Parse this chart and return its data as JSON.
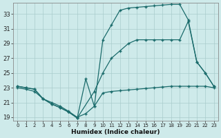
{
  "xlabel": "Humidex (Indice chaleur)",
  "bg_color": "#ceeaea",
  "grid_color": "#aacccc",
  "line_color": "#1a6b6b",
  "xlim": [
    -0.5,
    23.5
  ],
  "ylim": [
    18.5,
    34.5
  ],
  "xticks": [
    0,
    1,
    2,
    3,
    4,
    5,
    6,
    7,
    8,
    9,
    10,
    11,
    12,
    13,
    14,
    15,
    16,
    17,
    18,
    19,
    20,
    21,
    22,
    23
  ],
  "yticks": [
    19,
    21,
    23,
    25,
    27,
    29,
    31,
    33
  ],
  "series_a_x": [
    0,
    1,
    2,
    3,
    4,
    5,
    6,
    7,
    8,
    9,
    10,
    11,
    12,
    13,
    14,
    15,
    16,
    17,
    18,
    19,
    20,
    21,
    22,
    23
  ],
  "series_a_y": [
    23.0,
    22.8,
    22.5,
    21.5,
    21.0,
    20.5,
    19.8,
    19.0,
    19.5,
    20.5,
    22.3,
    22.5,
    22.6,
    22.7,
    22.8,
    22.9,
    23.0,
    23.1,
    23.2,
    23.2,
    23.2,
    23.2,
    23.2,
    23.0
  ],
  "series_b_x": [
    0,
    1,
    2,
    3,
    4,
    5,
    6,
    7,
    9,
    10,
    11,
    12,
    13,
    14,
    15,
    16,
    17,
    18,
    19,
    20,
    21,
    22,
    23
  ],
  "series_b_y": [
    23.2,
    23.0,
    22.8,
    21.5,
    20.8,
    20.3,
    19.7,
    18.9,
    22.5,
    25.0,
    27.0,
    28.0,
    29.0,
    29.5,
    29.5,
    29.5,
    29.5,
    29.5,
    29.5,
    32.0,
    26.5,
    25.0,
    23.2
  ],
  "series_c_x": [
    0,
    1,
    2,
    3,
    4,
    5,
    6,
    7,
    8,
    9,
    10,
    11,
    12,
    13,
    14,
    15,
    16,
    17,
    18,
    19,
    20,
    21,
    22,
    23
  ],
  "series_c_y": [
    23.2,
    23.0,
    22.8,
    21.5,
    20.8,
    20.3,
    19.7,
    18.9,
    24.2,
    20.5,
    29.5,
    31.5,
    33.5,
    33.8,
    33.9,
    34.0,
    34.1,
    34.2,
    34.3,
    34.3,
    32.2,
    26.5,
    25.0,
    23.2
  ]
}
